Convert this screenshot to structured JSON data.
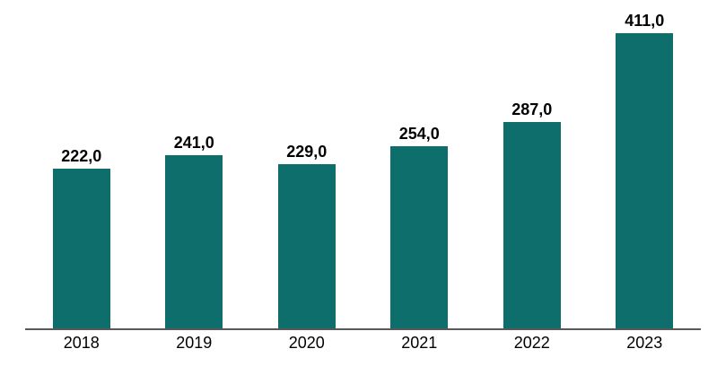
{
  "chart_data": {
    "type": "bar",
    "title": "",
    "xlabel": "",
    "ylabel": "",
    "categories": [
      "2018",
      "2019",
      "2020",
      "2021",
      "2022",
      "2023"
    ],
    "values": [
      222.0,
      241.0,
      229.0,
      254.0,
      287.0,
      411.0
    ],
    "value_labels": [
      "222,0",
      "241,0",
      "229,0",
      "254,0",
      "287,0",
      "411,0"
    ],
    "ylim": [
      0,
      420
    ],
    "grid": false,
    "legend": false,
    "data_labels_position": "above-bar",
    "bar_color": "#0d6e6b",
    "axis_line_color": "#595959",
    "label_color": "#000000",
    "background_color": "#ffffff"
  }
}
